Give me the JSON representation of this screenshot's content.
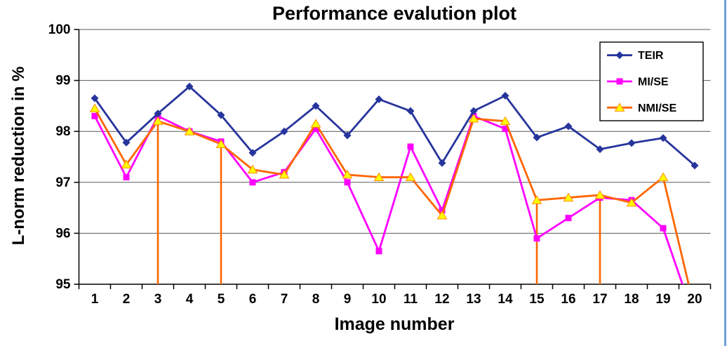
{
  "chart_data": {
    "type": "line",
    "title": "Performance evalution plot",
    "xlabel": "Image number",
    "ylabel": "L-norm reduction in %",
    "x": [
      1,
      2,
      3,
      4,
      5,
      6,
      7,
      8,
      9,
      10,
      11,
      12,
      13,
      14,
      15,
      16,
      17,
      18,
      19,
      20
    ],
    "ylim": [
      95,
      100
    ],
    "ytick_step": 1,
    "grid": true,
    "grid_color": "#595959",
    "axis_color": "#000000",
    "legend_position": "top-right",
    "draw_order": [
      1,
      2,
      0
    ],
    "series": [
      {
        "name": "TEIR",
        "color": "#26349C",
        "marker": "diamond",
        "marker_color": "#26349C",
        "values": [
          98.65,
          97.78,
          98.35,
          98.88,
          98.32,
          97.58,
          98.0,
          98.5,
          97.92,
          98.63,
          98.4,
          97.38,
          98.4,
          98.7,
          97.88,
          98.1,
          97.65,
          97.77,
          97.87,
          97.33
        ]
      },
      {
        "name": "MI/SE",
        "color": "#FF00FF",
        "marker": "square",
        "marker_color": "#FF00FF",
        "values": [
          98.3,
          97.1,
          98.3,
          98.0,
          97.8,
          97.0,
          97.2,
          98.05,
          97.0,
          95.65,
          97.7,
          96.45,
          98.3,
          98.05,
          95.9,
          96.3,
          96.7,
          96.65,
          96.1,
          94.3
        ]
      },
      {
        "name": "NMI/SE",
        "color": "#FF6600",
        "marker": "triangle",
        "marker_color": "#FFFF00",
        "marker_stroke": "#FF8C00",
        "values": [
          98.45,
          97.35,
          98.2,
          98.0,
          97.75,
          97.25,
          97.15,
          98.15,
          97.15,
          97.1,
          97.1,
          96.35,
          98.25,
          98.2,
          96.65,
          96.7,
          96.75,
          96.6,
          97.1,
          94.5
        ]
      }
    ],
    "drop_lines": {
      "series": "NMI/SE",
      "x": [
        3,
        5,
        15,
        17
      ],
      "color": "#FF6600"
    }
  }
}
